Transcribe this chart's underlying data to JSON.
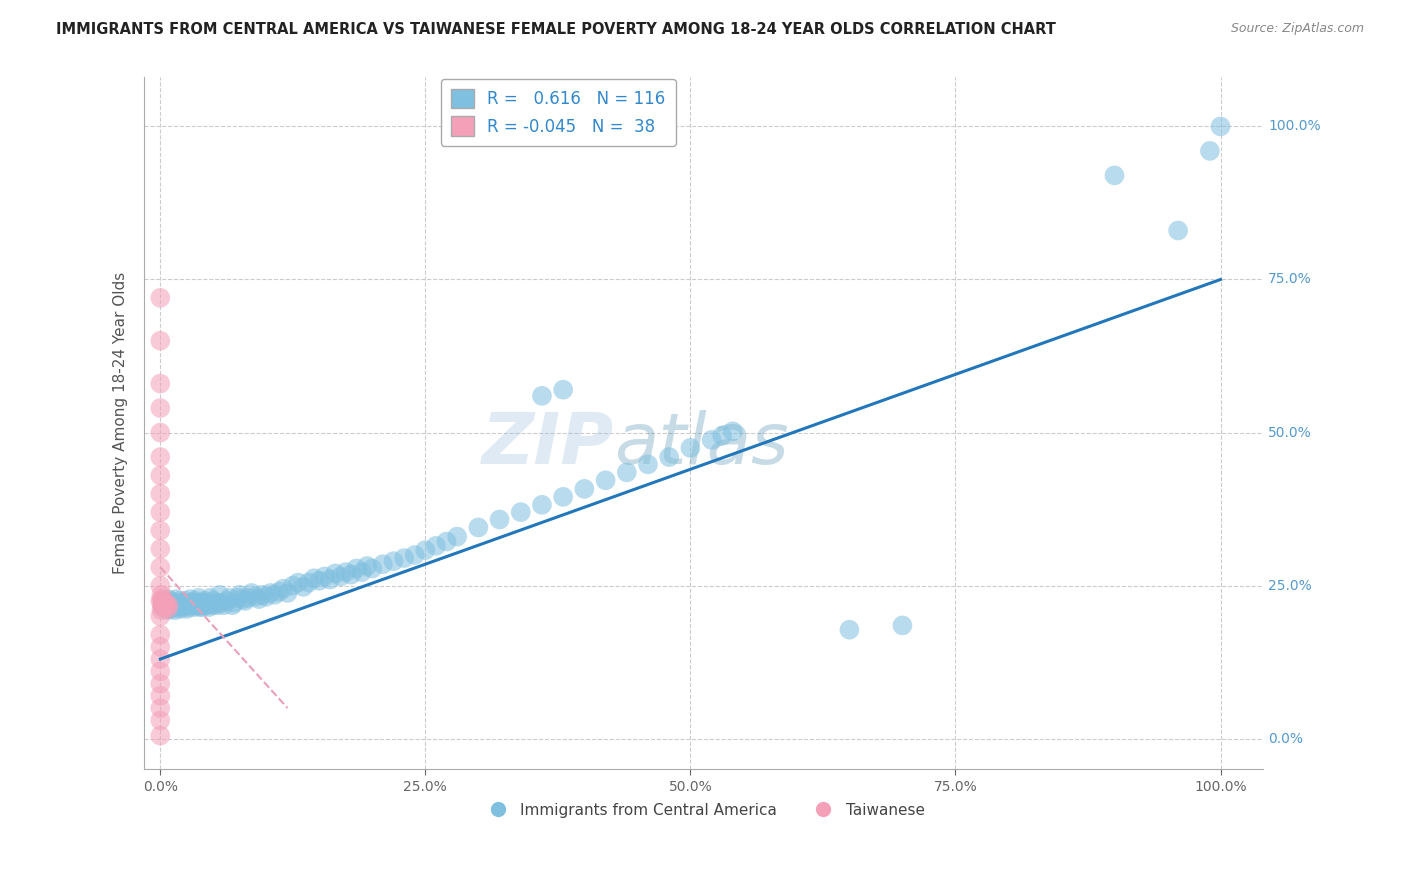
{
  "title": "IMMIGRANTS FROM CENTRAL AMERICA VS TAIWANESE FEMALE POVERTY AMONG 18-24 YEAR OLDS CORRELATION CHART",
  "source": "Source: ZipAtlas.com",
  "ylabel": "Female Poverty Among 18-24 Year Olds",
  "watermark_zip": "ZIP",
  "watermark_atlas": "atlas",
  "legend_blue_r": "0.616",
  "legend_blue_n": "116",
  "legend_pink_r": "-0.045",
  "legend_pink_n": "38",
  "blue_color": "#7fbfdf",
  "pink_color": "#f4a0b8",
  "trendline_blue": "#2277bb",
  "trendline_pink": "#e8a0b8",
  "background": "#ffffff",
  "grid_color": "#cccccc",
  "right_label_color": "#5599cc",
  "blue_points": [
    [
      0.002,
      0.215
    ],
    [
      0.003,
      0.225
    ],
    [
      0.004,
      0.22
    ],
    [
      0.005,
      0.218
    ],
    [
      0.006,
      0.222
    ],
    [
      0.007,
      0.21
    ],
    [
      0.007,
      0.228
    ],
    [
      0.008,
      0.215
    ],
    [
      0.009,
      0.22
    ],
    [
      0.01,
      0.212
    ],
    [
      0.01,
      0.225
    ],
    [
      0.011,
      0.218
    ],
    [
      0.012,
      0.215
    ],
    [
      0.013,
      0.222
    ],
    [
      0.014,
      0.21
    ],
    [
      0.015,
      0.22
    ],
    [
      0.015,
      0.228
    ],
    [
      0.016,
      0.215
    ],
    [
      0.017,
      0.218
    ],
    [
      0.018,
      0.225
    ],
    [
      0.019,
      0.212
    ],
    [
      0.02,
      0.22
    ],
    [
      0.021,
      0.215
    ],
    [
      0.022,
      0.222
    ],
    [
      0.023,
      0.218
    ],
    [
      0.024,
      0.225
    ],
    [
      0.025,
      0.212
    ],
    [
      0.026,
      0.22
    ],
    [
      0.027,
      0.215
    ],
    [
      0.028,
      0.228
    ],
    [
      0.03,
      0.218
    ],
    [
      0.031,
      0.222
    ],
    [
      0.032,
      0.215
    ],
    [
      0.033,
      0.225
    ],
    [
      0.034,
      0.22
    ],
    [
      0.035,
      0.218
    ],
    [
      0.036,
      0.23
    ],
    [
      0.037,
      0.215
    ],
    [
      0.038,
      0.222
    ],
    [
      0.039,
      0.218
    ],
    [
      0.04,
      0.215
    ],
    [
      0.042,
      0.225
    ],
    [
      0.043,
      0.218
    ],
    [
      0.044,
      0.222
    ],
    [
      0.046,
      0.215
    ],
    [
      0.047,
      0.23
    ],
    [
      0.049,
      0.218
    ],
    [
      0.05,
      0.225
    ],
    [
      0.052,
      0.22
    ],
    [
      0.054,
      0.218
    ],
    [
      0.056,
      0.235
    ],
    [
      0.058,
      0.222
    ],
    [
      0.06,
      0.218
    ],
    [
      0.063,
      0.225
    ],
    [
      0.065,
      0.23
    ],
    [
      0.068,
      0.218
    ],
    [
      0.07,
      0.222
    ],
    [
      0.073,
      0.23
    ],
    [
      0.075,
      0.235
    ],
    [
      0.078,
      0.228
    ],
    [
      0.08,
      0.225
    ],
    [
      0.083,
      0.23
    ],
    [
      0.086,
      0.238
    ],
    [
      0.09,
      0.232
    ],
    [
      0.093,
      0.228
    ],
    [
      0.096,
      0.235
    ],
    [
      0.1,
      0.232
    ],
    [
      0.104,
      0.238
    ],
    [
      0.108,
      0.235
    ],
    [
      0.112,
      0.24
    ],
    [
      0.116,
      0.245
    ],
    [
      0.12,
      0.238
    ],
    [
      0.125,
      0.25
    ],
    [
      0.13,
      0.255
    ],
    [
      0.135,
      0.248
    ],
    [
      0.14,
      0.255
    ],
    [
      0.145,
      0.262
    ],
    [
      0.15,
      0.258
    ],
    [
      0.155,
      0.265
    ],
    [
      0.16,
      0.26
    ],
    [
      0.165,
      0.27
    ],
    [
      0.17,
      0.265
    ],
    [
      0.175,
      0.272
    ],
    [
      0.18,
      0.268
    ],
    [
      0.185,
      0.278
    ],
    [
      0.19,
      0.272
    ],
    [
      0.195,
      0.282
    ],
    [
      0.2,
      0.278
    ],
    [
      0.21,
      0.285
    ],
    [
      0.22,
      0.29
    ],
    [
      0.23,
      0.295
    ],
    [
      0.24,
      0.3
    ],
    [
      0.25,
      0.308
    ],
    [
      0.26,
      0.315
    ],
    [
      0.27,
      0.322
    ],
    [
      0.28,
      0.33
    ],
    [
      0.3,
      0.345
    ],
    [
      0.32,
      0.358
    ],
    [
      0.34,
      0.37
    ],
    [
      0.36,
      0.382
    ],
    [
      0.38,
      0.395
    ],
    [
      0.4,
      0.408
    ],
    [
      0.42,
      0.422
    ],
    [
      0.44,
      0.435
    ],
    [
      0.46,
      0.448
    ],
    [
      0.48,
      0.46
    ],
    [
      0.5,
      0.475
    ],
    [
      0.52,
      0.488
    ],
    [
      0.53,
      0.495
    ],
    [
      0.54,
      0.502
    ],
    [
      0.36,
      0.56
    ],
    [
      0.38,
      0.57
    ],
    [
      0.65,
      0.178
    ],
    [
      0.7,
      0.185
    ],
    [
      0.9,
      0.92
    ],
    [
      0.96,
      0.83
    ],
    [
      1.0,
      1.0
    ],
    [
      0.99,
      0.96
    ]
  ],
  "pink_points": [
    [
      0.0,
      0.005
    ],
    [
      0.0,
      0.03
    ],
    [
      0.0,
      0.05
    ],
    [
      0.0,
      0.07
    ],
    [
      0.0,
      0.09
    ],
    [
      0.0,
      0.11
    ],
    [
      0.0,
      0.13
    ],
    [
      0.0,
      0.15
    ],
    [
      0.0,
      0.17
    ],
    [
      0.0,
      0.2
    ],
    [
      0.0,
      0.225
    ],
    [
      0.0,
      0.25
    ],
    [
      0.0,
      0.28
    ],
    [
      0.0,
      0.31
    ],
    [
      0.0,
      0.34
    ],
    [
      0.0,
      0.37
    ],
    [
      0.0,
      0.4
    ],
    [
      0.0,
      0.43
    ],
    [
      0.0,
      0.46
    ],
    [
      0.0,
      0.5
    ],
    [
      0.0,
      0.54
    ],
    [
      0.0,
      0.58
    ],
    [
      0.0,
      0.65
    ],
    [
      0.0,
      0.72
    ],
    [
      0.001,
      0.21
    ],
    [
      0.001,
      0.225
    ],
    [
      0.001,
      0.235
    ],
    [
      0.002,
      0.215
    ],
    [
      0.002,
      0.22
    ],
    [
      0.002,
      0.228
    ],
    [
      0.003,
      0.218
    ],
    [
      0.003,
      0.225
    ],
    [
      0.004,
      0.22
    ],
    [
      0.005,
      0.215
    ],
    [
      0.005,
      0.222
    ],
    [
      0.006,
      0.218
    ],
    [
      0.007,
      0.212
    ],
    [
      0.008,
      0.218
    ]
  ],
  "blue_trendline_x": [
    0.0,
    1.0
  ],
  "blue_trendline_y": [
    0.13,
    0.75
  ],
  "pink_trendline_x": [
    0.0,
    0.12
  ],
  "pink_trendline_y": [
    0.28,
    0.05
  ],
  "xlim": [
    -0.015,
    1.04
  ],
  "ylim": [
    -0.05,
    1.08
  ],
  "xticks": [
    0.0,
    0.25,
    0.5,
    0.75,
    1.0
  ],
  "yticks": [
    0.0,
    0.25,
    0.5,
    0.75,
    1.0
  ],
  "xticklabels": [
    "0.0%",
    "25.0%",
    "50.0%",
    "75.0%",
    "100.0%"
  ],
  "yticklabels_right": [
    "0.0%",
    "25.0%",
    "50.0%",
    "75.0%",
    "100.0%"
  ]
}
